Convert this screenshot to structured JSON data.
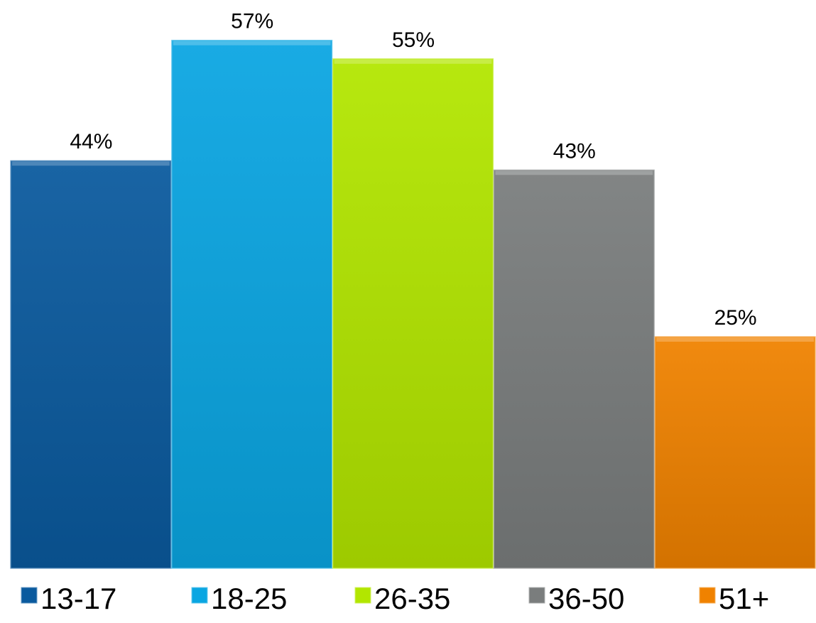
{
  "chart_data": {
    "type": "bar",
    "categories": [
      "13-17",
      "18-25",
      "26-35",
      "36-50",
      "51+"
    ],
    "values": [
      44,
      57,
      55,
      43,
      25
    ],
    "data_labels": [
      "44%",
      "57%",
      "55%",
      "43%",
      "25%"
    ],
    "unit": "%",
    "ylim": [
      0,
      60
    ],
    "grid": false,
    "legend": "bottom",
    "colors": [
      "#0a5a9e",
      "#0aa6e2",
      "#b2e600",
      "#7a7d7d",
      "#f08200"
    ],
    "title": "",
    "xlabel": "",
    "ylabel": ""
  }
}
